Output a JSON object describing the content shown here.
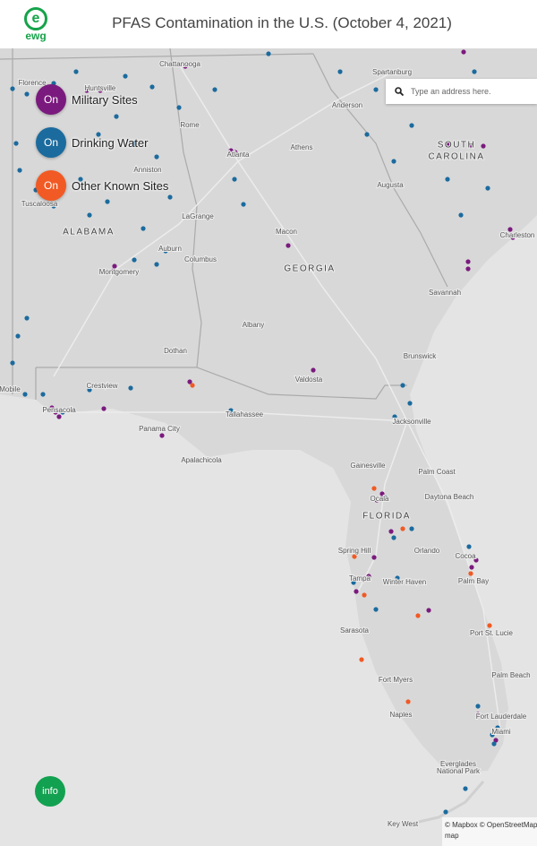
{
  "header": {
    "logo": "ewg",
    "title": "PFAS Contamination in the U.S. (October 4, 2021)"
  },
  "layers": [
    {
      "state": "On",
      "label": "Military Sites"
    },
    {
      "state": "On",
      "label": "Drinking Water"
    },
    {
      "state": "On",
      "label": "Other Known Sites"
    }
  ],
  "search": {
    "placeholder": "Type an address here."
  },
  "map": {
    "labels": [
      "Chattanooga",
      "Spartanburg",
      "Florence",
      "Huntsville",
      "Anderson",
      "Rome",
      "Athens",
      "Atlanta",
      "SOUTH",
      "CAROLINA",
      "Anniston",
      "Augusta",
      "Tuscaloosa",
      "LaGrange",
      "ALABAMA",
      "Macon",
      "Charleston",
      "Auburn",
      "Columbus",
      "GEORGIA",
      "Montgomery",
      "Savannah",
      "Albany",
      "Dothan",
      "Brunswick",
      "Valdosta",
      "Mobile",
      "Crestview",
      "Pensacola",
      "Tallahassee",
      "Jacksonville",
      "Panama City",
      "Apalachicola",
      "Gainesville",
      "Palm Coast",
      "Ocala",
      "Daytona Beach",
      "FLORIDA",
      "Spring Hill",
      "Orlando",
      "Cocoa",
      "Tampa",
      "Winter Haven",
      "Palm Bay",
      "Sarasota",
      "Port St. Lucie",
      "Palm Beach",
      "Fort Myers",
      "Naples",
      "Fort Lauderdale",
      "Miami",
      "Everglades",
      "National Park",
      "Key West"
    ]
  },
  "info": "info",
  "attribution": {
    "line1": "© Mapbox © OpenStreetMap",
    "line2": "map"
  }
}
